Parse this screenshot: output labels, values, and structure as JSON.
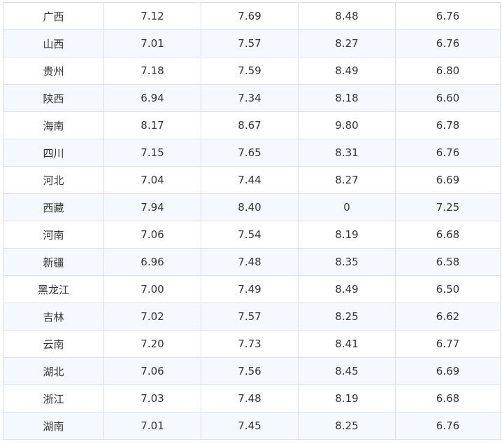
{
  "table": {
    "rows": [
      [
        "广西",
        "7.12",
        "7.69",
        "8.48",
        "6.76"
      ],
      [
        "山西",
        "7.01",
        "7.57",
        "8.27",
        "6.76"
      ],
      [
        "贵州",
        "7.18",
        "7.59",
        "8.49",
        "6.80"
      ],
      [
        "陕西",
        "6.94",
        "7.34",
        "8.18",
        "6.60"
      ],
      [
        "海南",
        "8.17",
        "8.67",
        "9.80",
        "6.78"
      ],
      [
        "四川",
        "7.15",
        "7.65",
        "8.31",
        "6.76"
      ],
      [
        "河北",
        "7.04",
        "7.44",
        "8.27",
        "6.69"
      ],
      [
        "西藏",
        "7.94",
        "8.40",
        "0",
        "7.25"
      ],
      [
        "河南",
        "7.06",
        "7.54",
        "8.19",
        "6.68"
      ],
      [
        "新疆",
        "6.96",
        "7.48",
        "8.35",
        "6.58"
      ],
      [
        "黑龙江",
        "7.00",
        "7.49",
        "8.49",
        "6.50"
      ],
      [
        "吉林",
        "7.02",
        "7.57",
        "8.25",
        "6.62"
      ],
      [
        "云南",
        "7.20",
        "7.73",
        "8.41",
        "6.77"
      ],
      [
        "湖北",
        "7.06",
        "7.56",
        "8.45",
        "6.69"
      ],
      [
        "浙江",
        "7.03",
        "7.48",
        "8.19",
        "6.68"
      ],
      [
        "湖南",
        "7.01",
        "7.45",
        "8.25",
        "6.76"
      ]
    ]
  },
  "colors": {
    "border": "#dcdfe6",
    "stripe": "#f5f9ff",
    "text": "#333333"
  }
}
